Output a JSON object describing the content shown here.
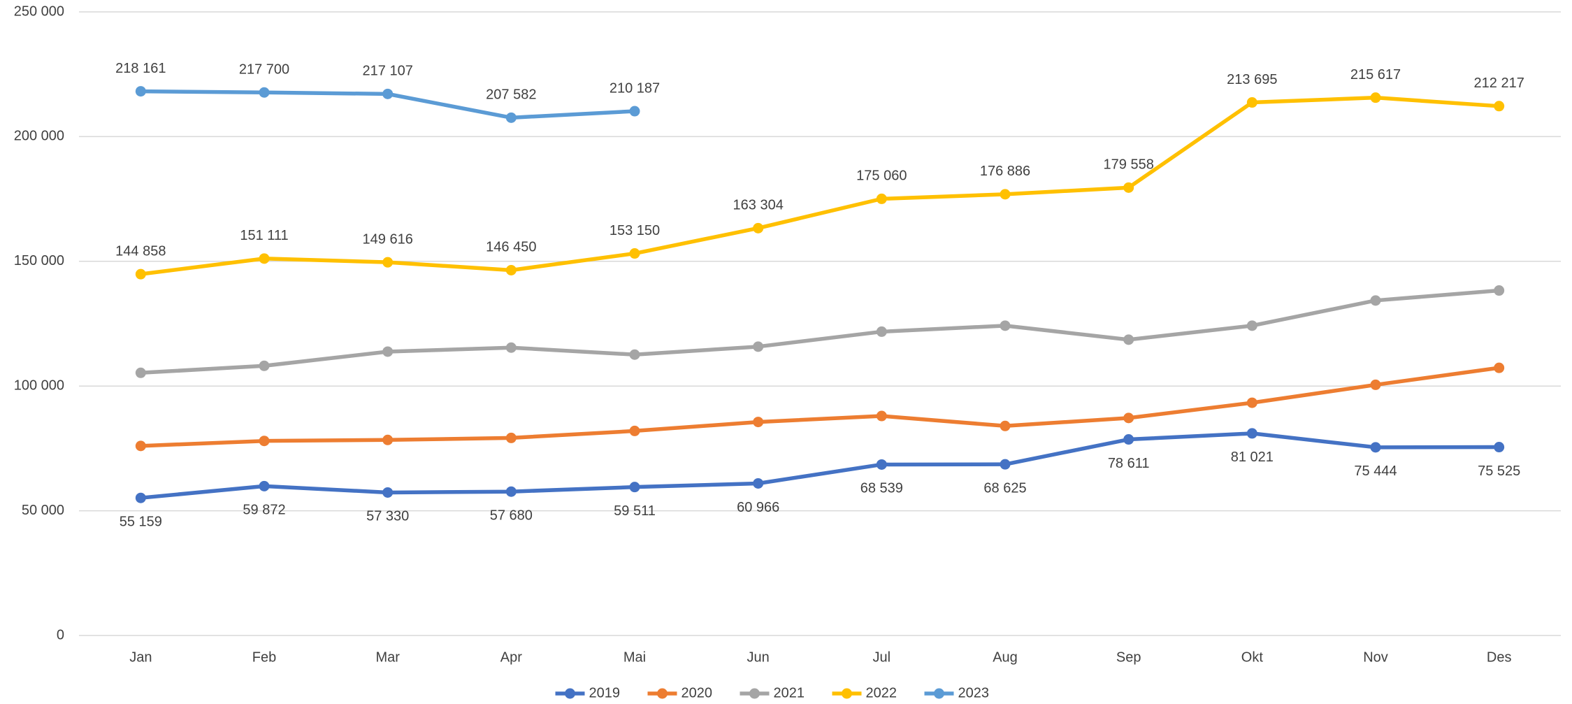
{
  "chart_data": {
    "type": "line",
    "categories": [
      "Jan",
      "Feb",
      "Mar",
      "Apr",
      "Mai",
      "Jun",
      "Jul",
      "Aug",
      "Sep",
      "Okt",
      "Nov",
      "Des"
    ],
    "ylim": [
      0,
      250000
    ],
    "yticks": [
      0,
      {
        "value": 50000,
        "label": "50 000"
      },
      {
        "value": 100000,
        "label": "100 000"
      },
      {
        "value": 150000,
        "label": "150 000"
      },
      {
        "value": 200000,
        "label": "200 000"
      },
      {
        "value": 250000,
        "label": "250 000"
      }
    ],
    "grid": true,
    "legend": "bottom",
    "series": [
      {
        "name": "2019",
        "color": "#4472c4",
        "label_position": "below",
        "values": [
          55159,
          59872,
          57330,
          57680,
          59511,
          60966,
          68539,
          68625,
          78611,
          81021,
          75444,
          75525
        ],
        "value_labels": [
          "55 159",
          "59 872",
          "57 330",
          "57 680",
          "59 511",
          "60 966",
          "68 539",
          "68 625",
          "78 611",
          "81 021",
          "75 444",
          "75 525"
        ]
      },
      {
        "name": "2020",
        "color": "#ed7d31",
        "values": [
          76000,
          78000,
          78400,
          79200,
          82000,
          85600,
          88000,
          84000,
          87200,
          93300,
          100500,
          107300
        ]
      },
      {
        "name": "2021",
        "color": "#a5a5a5",
        "values": [
          105300,
          108100,
          113800,
          115400,
          112600,
          115800,
          121800,
          124200,
          118600,
          124200,
          134300,
          138300
        ]
      },
      {
        "name": "2022",
        "color": "#ffc000",
        "label_position": "above",
        "values": [
          144858,
          151111,
          149616,
          146450,
          153150,
          163304,
          175060,
          176886,
          179558,
          213695,
          215617,
          212217
        ],
        "value_labels": [
          "144 858",
          "151 111",
          "149 616",
          "146 450",
          "153 150",
          "163 304",
          "175 060",
          "176 886",
          "179 558",
          "213 695",
          "215 617",
          "212 217"
        ]
      },
      {
        "name": "2023",
        "color": "#5b9bd5",
        "label_position": "above",
        "values": [
          218161,
          217700,
          217107,
          207582,
          210187,
          null,
          null,
          null,
          null,
          null,
          null,
          null
        ],
        "value_labels": [
          "218 161",
          "217 700",
          "217 107",
          "207 582",
          "210 187",
          null,
          null,
          null,
          null,
          null,
          null,
          null
        ]
      }
    ]
  }
}
